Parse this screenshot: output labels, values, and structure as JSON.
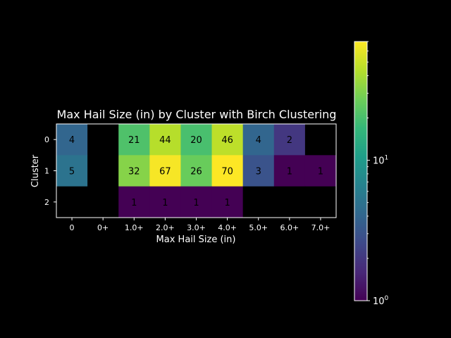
{
  "chart_data": {
    "type": "heatmap",
    "title": "Max Hail Size (in) by Cluster with Birch Clustering",
    "xlabel": "Max Hail Size (in)",
    "ylabel": "Cluster",
    "x_categories": [
      "0",
      "0+",
      "1.0+",
      "2.0+",
      "3.0+",
      "4.0+",
      "5.0+",
      "6.0+",
      "7.0+"
    ],
    "y_categories": [
      "0",
      "1",
      "2"
    ],
    "values": [
      [
        4,
        null,
        21,
        44,
        20,
        46,
        4,
        2,
        null
      ],
      [
        5,
        null,
        32,
        67,
        26,
        70,
        3,
        1,
        1
      ],
      [
        null,
        null,
        1,
        1,
        1,
        1,
        null,
        null,
        null
      ]
    ],
    "colorbar": {
      "scale": "log",
      "range": [
        1,
        70
      ],
      "colormap": "viridis",
      "tick_base": "10",
      "tick_labels": [
        {
          "exp": "0",
          "value": 1
        },
        {
          "exp": "1",
          "value": 10
        }
      ]
    },
    "colors": {
      "background": "#000000",
      "text": "#ffffff",
      "cell_text": "#000000",
      "empty_cell": "#000000"
    }
  }
}
